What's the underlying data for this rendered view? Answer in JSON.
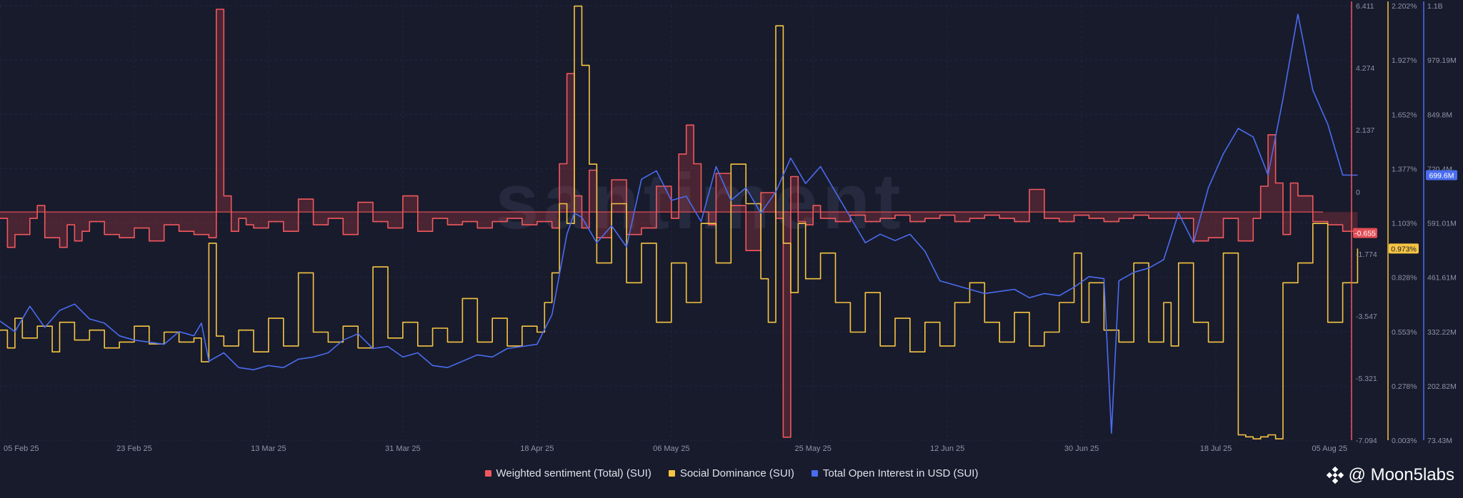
{
  "watermark": "santiment",
  "chart_data": {
    "type": "line",
    "x_ticks": [
      "05 Feb 25",
      "23 Feb 25",
      "13 Mar 25",
      "31 Mar 25",
      "18 Apr 25",
      "06 May 25",
      "25 May 25",
      "12 Jun 25",
      "30 Jun 25",
      "18 Jul 25",
      "05 Aug 25"
    ],
    "x_range": [
      "05 Feb 25",
      "05 Aug 25"
    ],
    "grid": true,
    "legend_position": "bottom",
    "axes": {
      "sentiment": {
        "ticks": [
          "6.411",
          "4.274",
          "2.137",
          "0",
          "-1.774",
          "-3.547",
          "-5.321",
          "-7.094"
        ],
        "ylim": [
          -7.094,
          6.411
        ],
        "color": "#f0585e"
      },
      "dominance": {
        "ticks": [
          "2.202%",
          "1.927%",
          "1.652%",
          "1.377%",
          "1.103%",
          "0.828%",
          "0.553%",
          "0.278%",
          "0.003%"
        ],
        "ylim": [
          0.003,
          2.202
        ],
        "color": "#f5c542"
      },
      "open_interest": {
        "ticks": [
          "1.1B",
          "979.19M",
          "849.8M",
          "720.4M",
          "591.01M",
          "461.61M",
          "332.22M",
          "202.82M",
          "73.43M"
        ],
        "ylim": [
          73.43,
          1100
        ],
        "unit": "M",
        "color": "#4a6cf0"
      }
    },
    "series": [
      {
        "name": "Weighted sentiment (Total) (SUI)",
        "axis": "sentiment",
        "color": "#f0585e",
        "current_label": "-0.655",
        "x_days": [
          0,
          1,
          2,
          4,
          5,
          6,
          8,
          9,
          10,
          11,
          12,
          14,
          16,
          18,
          20,
          22,
          24,
          26,
          28,
          29,
          30,
          31,
          32,
          33,
          34,
          36,
          38,
          40,
          42,
          44,
          46,
          48,
          50,
          52,
          54,
          56,
          58,
          60,
          62,
          64,
          66,
          68,
          70,
          72,
          74,
          75,
          76,
          77,
          78,
          79,
          80,
          82,
          84,
          86,
          88,
          90,
          91,
          92,
          93,
          94,
          95,
          96,
          98,
          100,
          102,
          104,
          105,
          106,
          107,
          108,
          109,
          110,
          112,
          114,
          116,
          118,
          120,
          122,
          124,
          126,
          128,
          130,
          132,
          134,
          136,
          138,
          140,
          142,
          144,
          146,
          148,
          150,
          152,
          154,
          155,
          156,
          157,
          158,
          160,
          162,
          164,
          166,
          168,
          169,
          170,
          171,
          172,
          173,
          174,
          176,
          178,
          180,
          182
        ],
        "values": [
          -0.2,
          -1.1,
          -0.7,
          -0.2,
          0.2,
          -0.8,
          -1.1,
          -0.4,
          -0.9,
          -0.6,
          -0.3,
          -0.7,
          -0.8,
          -0.5,
          -0.9,
          -0.4,
          -0.6,
          -0.7,
          -0.8,
          6.3,
          0.5,
          -0.6,
          -0.2,
          -0.4,
          -0.5,
          -0.3,
          -0.6,
          0.4,
          -0.4,
          -0.2,
          -0.7,
          0.3,
          -0.3,
          -0.5,
          0.5,
          -0.6,
          -0.2,
          -0.4,
          -0.3,
          -0.5,
          -0.3,
          -0.2,
          -0.4,
          -0.3,
          -0.5,
          1.5,
          4.3,
          0.5,
          -0.5,
          1.3,
          -0.8,
          1.0,
          -0.7,
          -0.5,
          0.8,
          -0.2,
          1.8,
          2.7,
          1.5,
          0.0,
          -0.4,
          1.2,
          0.2,
          -1.2,
          0.6,
          -0.2,
          -7.0,
          1.1,
          -0.3,
          -0.4,
          0.2,
          -0.2,
          -0.3,
          -0.1,
          -0.3,
          -0.2,
          -0.1,
          -0.3,
          -0.2,
          -0.1,
          -0.3,
          -0.2,
          -0.1,
          -0.2,
          -0.3,
          0.7,
          -0.2,
          -0.3,
          -0.1,
          -0.2,
          -0.3,
          -0.2,
          -0.1,
          -0.2,
          -0.2,
          -0.2,
          -0.2,
          -0.2,
          -0.9,
          -0.8,
          -0.2,
          -0.9,
          -0.2,
          0.8,
          2.4,
          0.9,
          -0.7,
          0.9,
          0.5,
          -0.3,
          -0.4,
          -0.6,
          -0.655
        ]
      },
      {
        "name": "Social Dominance (SUI)",
        "axis": "dominance",
        "color": "#f5c542",
        "current_label": "0.973%",
        "x_days": [
          0,
          1,
          2,
          3,
          5,
          7,
          8,
          10,
          12,
          14,
          16,
          18,
          20,
          22,
          24,
          26,
          27,
          28,
          29,
          30,
          32,
          34,
          36,
          38,
          40,
          42,
          44,
          46,
          48,
          50,
          52,
          54,
          56,
          58,
          60,
          62,
          64,
          66,
          68,
          70,
          72,
          73,
          74,
          75,
          76,
          77,
          78,
          79,
          80,
          82,
          84,
          86,
          88,
          90,
          92,
          94,
          96,
          98,
          100,
          102,
          103,
          104,
          105,
          106,
          107,
          108,
          110,
          112,
          114,
          116,
          118,
          120,
          122,
          124,
          126,
          128,
          130,
          132,
          134,
          136,
          138,
          140,
          142,
          144,
          145,
          146,
          148,
          150,
          152,
          154,
          156,
          157,
          158,
          160,
          162,
          164,
          166,
          167,
          168,
          169,
          170,
          171,
          172,
          174,
          176,
          178,
          180,
          182
        ],
        "values": [
          0.56,
          0.47,
          0.62,
          0.52,
          0.58,
          0.45,
          0.6,
          0.51,
          0.56,
          0.47,
          0.5,
          0.58,
          0.49,
          0.55,
          0.5,
          0.52,
          0.4,
          1.0,
          0.53,
          0.48,
          0.56,
          0.45,
          0.62,
          0.48,
          0.85,
          0.55,
          0.5,
          0.58,
          0.47,
          0.88,
          0.52,
          0.6,
          0.48,
          0.57,
          0.5,
          0.72,
          0.5,
          0.62,
          0.48,
          0.58,
          0.55,
          0.7,
          0.85,
          1.2,
          1.1,
          2.2,
          1.9,
          1.4,
          0.9,
          1.2,
          0.8,
          1.0,
          0.6,
          0.9,
          0.7,
          1.1,
          0.9,
          1.4,
          1.2,
          0.82,
          0.6,
          2.1,
          1.0,
          0.75,
          1.1,
          0.82,
          0.95,
          0.7,
          0.55,
          0.75,
          0.48,
          0.62,
          0.45,
          0.6,
          0.48,
          0.7,
          0.8,
          0.6,
          0.5,
          0.65,
          0.48,
          0.55,
          0.7,
          0.95,
          0.6,
          0.8,
          0.56,
          0.5,
          0.9,
          0.5,
          0.7,
          0.48,
          0.9,
          0.6,
          0.5,
          0.95,
          0.03,
          0.02,
          0.01,
          0.02,
          0.03,
          0.01,
          0.8,
          0.9,
          1.1,
          0.6,
          0.8,
          0.973
        ]
      },
      {
        "name": "Total Open Interest in USD (SUI)",
        "axis": "open_interest",
        "color": "#4a6cf0",
        "current_label": "699.6M",
        "x_days": [
          0,
          2,
          4,
          6,
          8,
          10,
          12,
          14,
          16,
          18,
          20,
          22,
          24,
          26,
          27,
          28,
          30,
          32,
          34,
          36,
          38,
          40,
          42,
          44,
          46,
          48,
          50,
          52,
          54,
          56,
          58,
          60,
          62,
          64,
          66,
          68,
          70,
          72,
          74,
          76,
          77,
          78,
          80,
          82,
          84,
          86,
          88,
          90,
          92,
          94,
          96,
          98,
          100,
          102,
          104,
          106,
          108,
          110,
          112,
          114,
          116,
          118,
          120,
          122,
          124,
          126,
          128,
          130,
          132,
          134,
          136,
          138,
          140,
          142,
          144,
          146,
          148,
          149,
          150,
          152,
          154,
          156,
          158,
          160,
          162,
          164,
          166,
          168,
          170,
          172,
          174,
          176,
          178,
          180,
          182
        ],
        "values": [
          355,
          330,
          390,
          340,
          380,
          395,
          360,
          350,
          320,
          310,
          305,
          300,
          330,
          320,
          350,
          260,
          280,
          245,
          240,
          250,
          245,
          265,
          270,
          280,
          310,
          325,
          290,
          295,
          270,
          280,
          250,
          245,
          260,
          275,
          270,
          290,
          295,
          300,
          370,
          560,
          610,
          600,
          540,
          580,
          530,
          690,
          710,
          640,
          650,
          590,
          720,
          640,
          670,
          610,
          660,
          740,
          680,
          720,
          660,
          600,
          540,
          560,
          545,
          560,
          520,
          450,
          440,
          430,
          420,
          425,
          430,
          410,
          420,
          415,
          435,
          460,
          455,
          90,
          450,
          470,
          480,
          500,
          610,
          540,
          670,
          750,
          810,
          790,
          700,
          880,
          1080,
          900,
          820,
          700,
          699.6
        ]
      }
    ]
  },
  "legend": {
    "items": [
      {
        "label": "Weighted sentiment (Total) (SUI)",
        "color": "#f0585e"
      },
      {
        "label": "Social Dominance (SUI)",
        "color": "#f5c542"
      },
      {
        "label": "Total Open Interest in USD (SUI)",
        "color": "#4a6cf0"
      }
    ]
  },
  "brand": {
    "handle": "@ Moon5labs"
  }
}
